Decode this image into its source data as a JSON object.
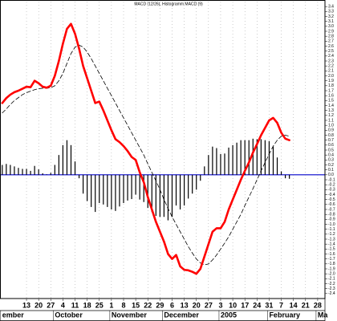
{
  "chart_data": {
    "type": "line",
    "title": "MACD (12/26), Histogramm MACD (9)",
    "categories": [
      null,
      null,
      null,
      null,
      null,
      null,
      "13",
      null,
      null,
      "20",
      null,
      null,
      "27",
      null,
      null,
      "4",
      null,
      null,
      "11",
      null,
      null,
      "18",
      null,
      null,
      "25",
      null,
      null,
      "1",
      null,
      null,
      "8",
      null,
      null,
      "15",
      null,
      null,
      "22",
      null,
      null,
      "29",
      null,
      null,
      "6",
      null,
      null,
      "13",
      null,
      null,
      "20",
      null,
      null,
      "27",
      null,
      null,
      "3",
      null,
      null,
      "10",
      null,
      null,
      "17",
      null,
      null,
      "24",
      null,
      null,
      "31",
      null,
      null,
      "7",
      null,
      null,
      "14",
      null,
      null,
      "21",
      null,
      null,
      "28"
    ],
    "months": [
      "ember",
      null,
      null,
      null,
      null,
      null,
      null,
      null,
      null,
      null,
      null,
      null,
      null,
      "October",
      null,
      null,
      null,
      null,
      null,
      null,
      null,
      null,
      null,
      null,
      null,
      null,
      null,
      "November",
      null,
      null,
      null,
      null,
      null,
      null,
      null,
      null,
      null,
      null,
      null,
      null,
      "December",
      null,
      null,
      null,
      null,
      null,
      null,
      null,
      null,
      null,
      null,
      null,
      null,
      null,
      "2005",
      null,
      null,
      null,
      null,
      null,
      null,
      null,
      null,
      null,
      null,
      null,
      "February",
      null,
      null,
      null,
      null,
      null,
      null,
      null,
      null,
      null,
      null,
      null,
      "Ma"
    ],
    "series": [
      {
        "style": "bar",
        "color": "#000000",
        "values": [
          0.2,
          0.22,
          0.2,
          0.17,
          0.14,
          0.12,
          0.12,
          0.08,
          0.18,
          0.11,
          0.03,
          0.01,
          0.04,
          0.2,
          0.4,
          0.6,
          0.7,
          0.6,
          0.27,
          -0.07,
          -0.38,
          -0.53,
          -0.65,
          -0.75,
          -0.57,
          -0.6,
          -0.65,
          -0.7,
          -0.73,
          -0.64,
          -0.57,
          -0.52,
          -0.49,
          -0.4,
          -0.5,
          -0.55,
          -0.67,
          -0.75,
          -0.83,
          -0.85,
          -0.85,
          -0.92,
          -0.85,
          -0.62,
          -0.7,
          -0.62,
          -0.48,
          -0.38,
          -0.3,
          -0.12,
          0.17,
          0.4,
          0.57,
          0.54,
          0.42,
          0.43,
          0.55,
          0.6,
          0.65,
          0.7,
          0.7,
          0.7,
          0.73,
          0.72,
          0.72,
          0.7,
          0.68,
          0.57,
          0.35,
          0.07,
          -0.07,
          -0.08,
          null,
          null,
          null,
          null,
          null,
          null,
          null
        ]
      },
      {
        "style": "line",
        "dash": true,
        "color": "#000000",
        "values": [
          1.25,
          1.33,
          1.42,
          1.5,
          1.56,
          1.62,
          1.66,
          1.69,
          1.72,
          1.74,
          1.75,
          1.75,
          1.76,
          1.8,
          1.9,
          2.05,
          2.25,
          2.45,
          2.58,
          2.62,
          2.58,
          2.48,
          2.35,
          2.2,
          2.05,
          1.9,
          1.75,
          1.6,
          1.45,
          1.3,
          1.15,
          1.0,
          0.85,
          0.7,
          0.55,
          0.4,
          0.22,
          0.05,
          -0.12,
          -0.3,
          -0.5,
          -0.68,
          -0.85,
          -1.0,
          -1.15,
          -1.3,
          -1.45,
          -1.58,
          -1.7,
          -1.78,
          -1.82,
          -1.8,
          -1.72,
          -1.62,
          -1.5,
          -1.38,
          -1.25,
          -1.1,
          -0.95,
          -0.8,
          -0.62,
          -0.45,
          -0.28,
          -0.1,
          0.08,
          0.25,
          0.42,
          0.58,
          0.7,
          0.78,
          0.8,
          0.78,
          null,
          null,
          null,
          null,
          null,
          null,
          null
        ]
      },
      {
        "style": "line",
        "dash": false,
        "color": "#ff0000",
        "values": [
          1.45,
          1.55,
          1.62,
          1.67,
          1.7,
          1.74,
          1.78,
          1.77,
          1.9,
          1.85,
          1.78,
          1.76,
          1.8,
          2.0,
          2.3,
          2.65,
          2.95,
          3.05,
          2.85,
          2.55,
          2.2,
          1.95,
          1.7,
          1.45,
          1.48,
          1.3,
          1.1,
          0.9,
          0.72,
          0.66,
          0.58,
          0.48,
          0.36,
          0.3,
          0.05,
          -0.15,
          -0.45,
          -0.7,
          -0.95,
          -1.15,
          -1.35,
          -1.6,
          -1.7,
          -1.62,
          -1.85,
          -1.92,
          -1.93,
          -1.96,
          -2.0,
          -1.9,
          -1.65,
          -1.4,
          -1.15,
          -1.08,
          -1.08,
          -0.95,
          -0.7,
          -0.5,
          -0.3,
          -0.1,
          0.08,
          0.25,
          0.45,
          0.62,
          0.8,
          0.95,
          1.1,
          1.15,
          1.05,
          0.85,
          0.73,
          0.7,
          null,
          null,
          null,
          null,
          null,
          null,
          null
        ]
      }
    ],
    "zero_line_color": "#0000cc",
    "ylim": [
      -2.5,
      3.5
    ],
    "yticks": [
      3.4,
      3.3,
      3.2,
      3.1,
      {
        "value": 3,
        "label": "3.0"
      },
      2.9,
      2.8,
      2.7,
      2.6,
      2.5,
      2.4,
      2.3,
      2.2,
      2.1,
      {
        "value": 2,
        "label": "2.0"
      },
      1.9,
      1.8,
      1.7,
      1.6,
      1.5,
      1.4,
      1.3,
      1.2,
      1.1,
      {
        "value": 1,
        "label": "1.0"
      },
      0.9,
      0.8,
      0.7,
      0.6,
      0.5,
      0.4,
      0.3,
      0.2,
      0.1,
      {
        "value": 0,
        "label": "0.0"
      },
      -0.1,
      -0.2,
      -0.3,
      -0.4,
      -0.5,
      -0.6,
      -0.7,
      -0.8,
      -0.9,
      {
        "value": -1,
        "label": "-1.0"
      },
      -1.1,
      -1.2,
      -1.3,
      -1.4,
      -1.5,
      -1.6,
      -1.7,
      -1.8,
      -1.9,
      {
        "value": -2,
        "label": "-2.0"
      },
      -2.1,
      -2.2,
      -2.3,
      -2.4
    ],
    "grid": true
  }
}
